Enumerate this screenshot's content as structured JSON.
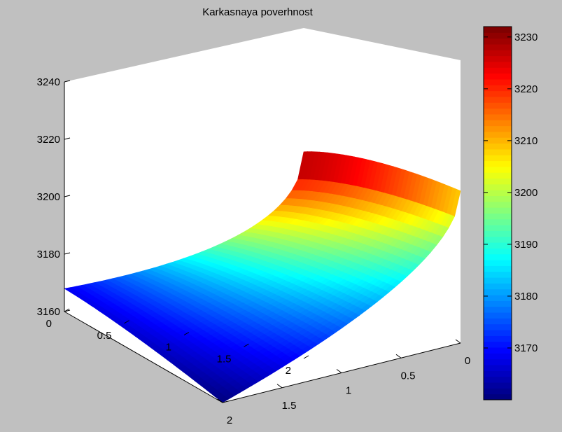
{
  "chart_data": {
    "type": "surface",
    "title": "Karkasnaya poverhnost",
    "xlabel": "",
    "ylabel": "",
    "zlabel": "",
    "x_range": [
      0,
      2
    ],
    "y_range": [
      0,
      2
    ],
    "zlim": [
      3160,
      3240
    ],
    "x_ticks": [
      "0",
      "0.5",
      "1",
      "1.5",
      "2"
    ],
    "y_ticks": [
      "0",
      "0.5",
      "1",
      "1.5",
      "2"
    ],
    "z_ticks": [
      "3160",
      "3180",
      "3200",
      "3220",
      "3240"
    ],
    "corner_values": [
      {
        "x": 2,
        "y": 0,
        "z": 3232
      },
      {
        "x": 0,
        "y": 0,
        "z": 3213
      },
      {
        "x": 0,
        "y": 2,
        "z": 3160
      },
      {
        "x": 2,
        "y": 2,
        "z": 3168
      }
    ],
    "colormap": "jet",
    "colorbar": {
      "clim": [
        3160,
        3232
      ],
      "ticks": [
        "3170",
        "3180",
        "3190",
        "3200",
        "3210",
        "3220",
        "3230"
      ]
    }
  }
}
